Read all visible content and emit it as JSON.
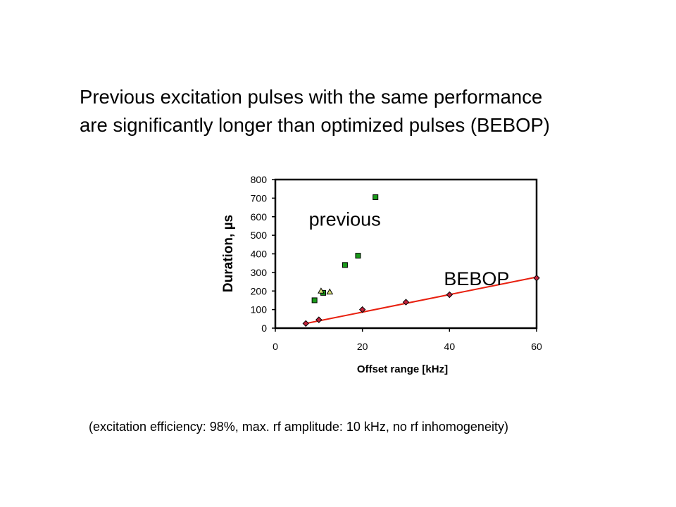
{
  "slide": {
    "headline_line1": "Previous excitation pulses with the same performance",
    "headline_line2": "are significantly longer than optimized pulses (BEBOP)",
    "footnote": "(excitation efficiency: 98%, max. rf amplitude: 10 kHz, no rf inhomogeneity)"
  },
  "chart_data": {
    "type": "scatter",
    "title": "",
    "xlabel": "Offset range [kHz]",
    "ylabel": "Duration, µs",
    "xlim": [
      0,
      60
    ],
    "ylim": [
      0,
      800
    ],
    "xticks": [
      0,
      20,
      40,
      60
    ],
    "yticks": [
      0,
      100,
      200,
      300,
      400,
      500,
      600,
      700,
      800
    ],
    "grid": false,
    "legend": "none",
    "series": [
      {
        "marker": "square",
        "color": "#1a9a1a",
        "points": [
          [
            9,
            150
          ],
          [
            11,
            190
          ],
          [
            16,
            340
          ],
          [
            19,
            390
          ],
          [
            23,
            705
          ]
        ]
      },
      {
        "marker": "triangle",
        "color": "#d8e07a",
        "points": [
          [
            10.5,
            200
          ],
          [
            12.5,
            195
          ]
        ]
      },
      {
        "marker": "diamond",
        "color": "#c0203a",
        "points": [
          [
            7,
            25
          ],
          [
            10,
            45
          ],
          [
            20,
            100
          ],
          [
            30,
            140
          ],
          [
            40,
            180
          ],
          [
            60,
            270
          ]
        ]
      }
    ],
    "fit_line": {
      "color": "#e8200f",
      "from": [
        7,
        25
      ],
      "to": [
        60,
        275
      ]
    },
    "annotations": [
      {
        "text": "previous",
        "x": 9,
        "y": 590
      },
      {
        "text": "BEBOP",
        "x": 40,
        "y": 270
      }
    ]
  }
}
